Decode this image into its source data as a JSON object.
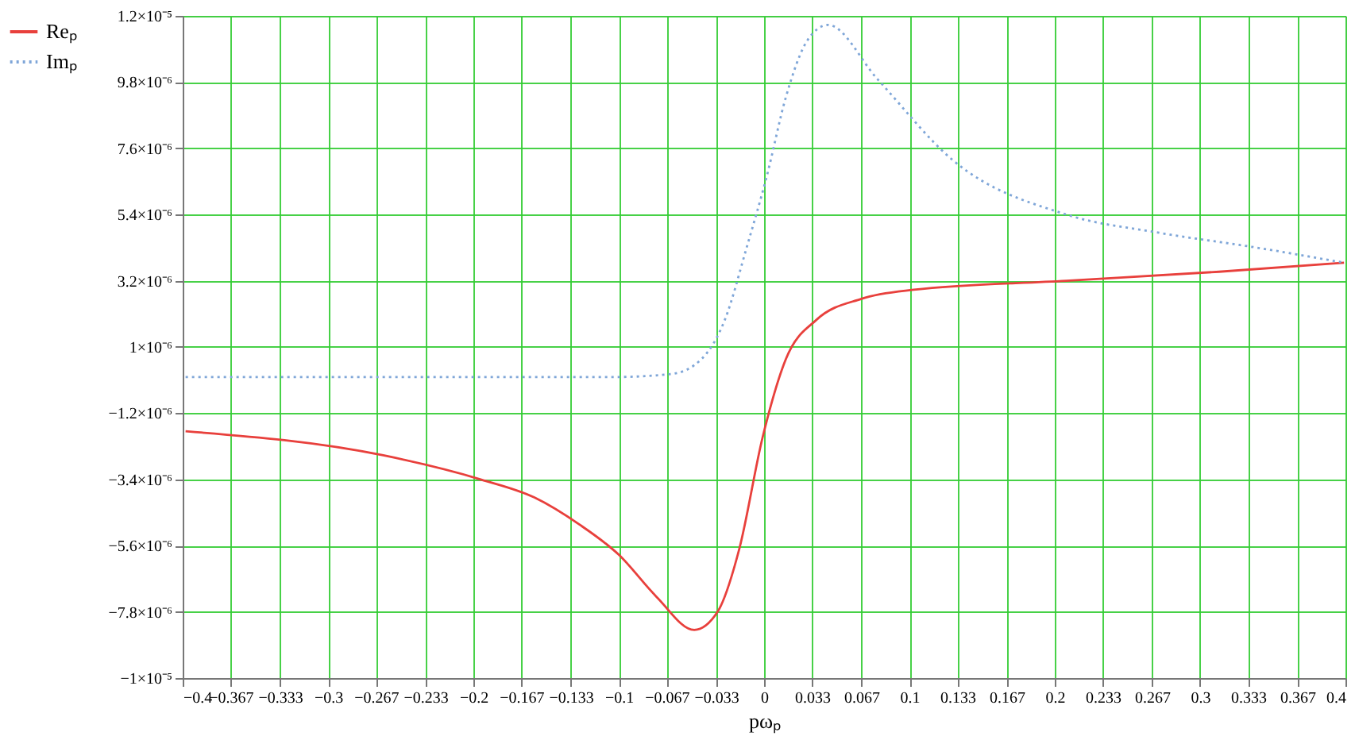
{
  "chart_data": {
    "type": "line",
    "xlabel": "pωₚ",
    "legend": "left",
    "grid": true,
    "marker": "none",
    "xlim": [
      -0.4,
      0.4
    ],
    "xticks": [
      -0.4,
      -0.367,
      -0.333,
      -0.3,
      -0.267,
      -0.233,
      -0.2,
      -0.167,
      -0.133,
      -0.1,
      -0.067,
      -0.033,
      0,
      0.033,
      0.067,
      0.1,
      0.133,
      0.167,
      0.2,
      0.233,
      0.267,
      0.3,
      0.333,
      0.367,
      0.4
    ],
    "ylim": [
      -1e-05,
      1.2e-05
    ],
    "yticks": [
      {
        "value": 1.2e-05,
        "label": "1.2×10⁻⁵"
      },
      {
        "value": 9.8e-06,
        "label": "9.8×10⁻⁶"
      },
      {
        "value": 7.6e-06,
        "label": "7.6×10⁻⁶"
      },
      {
        "value": 5.4e-06,
        "label": "5.4×10⁻⁶"
      },
      {
        "value": 3.2e-06,
        "label": "3.2×10⁻⁶"
      },
      {
        "value": 1e-06,
        "label": "1×10⁻⁶"
      },
      {
        "value": -1.2e-06,
        "label": "−1.2×10⁻⁶"
      },
      {
        "value": -3.4e-06,
        "label": "−3.4×10⁻⁶"
      },
      {
        "value": -5.6e-06,
        "label": "−5.6×10⁻⁶"
      },
      {
        "value": -7.8e-06,
        "label": "−7.8×10⁻⁶"
      },
      {
        "value": -1e-05,
        "label": "−1×10⁻⁵"
      }
    ],
    "series": [
      {
        "name": "Reₚ",
        "color": "#e8403c",
        "line_style": "solid",
        "x": [
          -0.398,
          -0.262,
          -0.195,
          -0.158,
          -0.127,
          -0.1,
          -0.074,
          -0.048,
          -0.032,
          -0.017,
          -0.001,
          0.015,
          0.036,
          0.067,
          0.103,
          0.208,
          0.313,
          0.399
        ],
        "values": [
          -1.8e-06,
          -2.6e-06,
          -3.4e-06,
          -4e-06,
          -4.9e-06,
          -5.9e-06,
          -7.3e-06,
          -8.4e-06,
          -7.8e-06,
          -5.7e-06,
          -2e-06,
          6e-07,
          1.9e-06,
          2.6e-06,
          2.9e-06,
          3.2e-06,
          3.5e-06,
          3.8e-06
        ]
      },
      {
        "name": "Imₚ",
        "color": "#7fa6d8",
        "line_style": "dotted",
        "x": [
          -0.398,
          -0.105,
          -0.064,
          -0.043,
          -0.027,
          -0.012,
          0.002,
          0.015,
          0.03,
          0.044,
          0.078,
          0.13,
          0.208,
          0.271,
          0.339,
          0.399
        ],
        "values": [
          0,
          0,
          1e-07,
          6e-07,
          1.9e-06,
          4.3e-06,
          6.7e-06,
          9.3e-06,
          1.12e-05,
          1.17e-05,
          9.9e-06,
          7.2e-06,
          5.4e-06,
          4.8e-06,
          4.3e-06,
          3.8e-06
        ]
      }
    ]
  }
}
